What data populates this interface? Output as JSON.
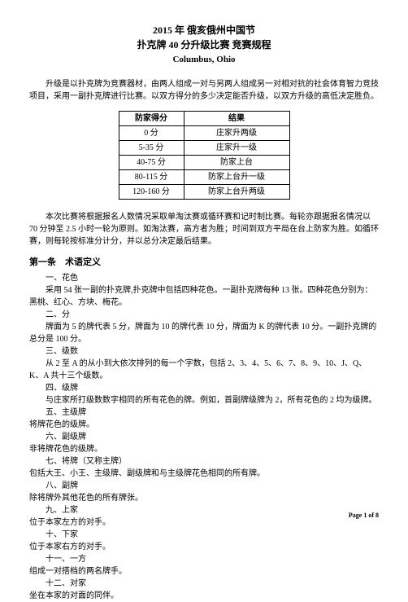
{
  "header": {
    "title_year": "2015 年 俄亥俄州中国节",
    "title_event": "扑克牌 40 分升级比赛 竞赛规程",
    "location": "Columbus, Ohio"
  },
  "intro": "升级是以扑克牌为竞赛器材，由两人组成一对与另两人组成另一对相对抗的社会体育智力竞技项目，采用一副扑克牌进行比赛。以双方得分的多少决定能否升级，以双方升级的高低决定胜负。",
  "score_table": {
    "headers": [
      "防家得分",
      "结果"
    ],
    "rows": [
      [
        "0 分",
        "庄家升两级"
      ],
      [
        "5-35 分",
        "庄家升一级"
      ],
      [
        "40-75 分",
        "防家上台"
      ],
      [
        "80-115 分",
        "防家上台升一级"
      ],
      [
        "120-160 分",
        "防家上台升两级"
      ]
    ]
  },
  "rules_para": "本次比赛将根据报名人数情况采取单淘汰赛或循环赛和记时制比赛。每轮亦跟据报名情况以 70 分钟至 2.5 小时一轮为原则。如淘汰赛，高方者为胜；时间到双方平局在台上防家为胜。如循环赛，则每轮按标准分计分，并以总分决定最后结果。",
  "section1": {
    "title": "第一条　术语定义",
    "items": [
      {
        "num": "一、花色",
        "body": "采用 54 张一副的扑克牌,扑克牌中包括四种花色。一副扑克牌每种 13 张。四种花色分别为：黑桃、红心、方块、梅花。"
      },
      {
        "num": "二、分",
        "body": "牌面为 5 的牌代表 5 分，牌面为 10 的牌代表 10 分，牌面为 K 的牌代表 10 分。一副扑克牌的总分是 100 分。"
      },
      {
        "num": "三、级数",
        "body": "从 2 至 A 的从小到大依次排列的每一个字数，包括 2、3、4、5、6、7、8、9、10、J、Q、K、A 共十三个级数。"
      },
      {
        "num": "四、级牌",
        "body": "与庄家所打级数数字相同的所有花色的牌。例如，首副牌级牌为 2，所有花色的 2 均为级牌。"
      },
      {
        "num": "五、主级牌",
        "body": "将牌花色的级牌。"
      },
      {
        "num": "六、副级牌",
        "body": "非将牌花色的级牌。"
      },
      {
        "num": "七、将牌（又称主牌）",
        "body": "包括大王、小王、主级牌、副级牌和与主级牌花色相同的所有牌。"
      },
      {
        "num": "八、副牌",
        "body": "除将牌外其他花色的所有牌张。"
      },
      {
        "num": "九、上家",
        "body": "位于本家左方的对手。"
      },
      {
        "num": "十、下家",
        "body": "位于本家右方的对手。"
      },
      {
        "num": "十一、一方",
        "body": "组成一对搭档的两名牌手。"
      },
      {
        "num": "十二、对家",
        "body": "坐在本家的对面的同伴。"
      }
    ]
  },
  "footer": "Page 1 of 8"
}
